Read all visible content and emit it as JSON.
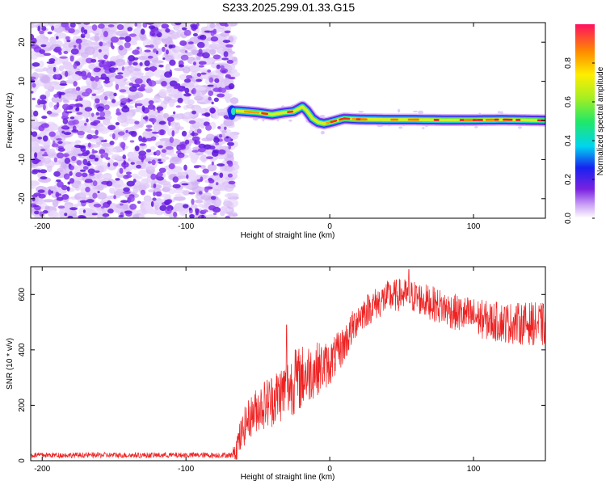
{
  "title": "S233.2025.299.01.33.G15",
  "colors": {
    "snr_line": "#ee2222",
    "axis": "#000000",
    "noise_dark": "#6a1ee0",
    "noise_light": "#d9c2f5"
  },
  "chart_data": [
    {
      "type": "heatmap",
      "name": "spectrogram",
      "title": "S233.2025.299.01.33.G15",
      "xlabel": "Height of straight line (km)",
      "ylabel": "Frequency (Hz)",
      "xlim": [
        -208,
        150
      ],
      "ylim": [
        -25,
        25
      ],
      "xticks": [
        -200,
        -100,
        0,
        100
      ],
      "yticks": [
        -20,
        -10,
        0,
        10,
        20
      ],
      "noise_region_x": [
        -208,
        -68
      ],
      "signal_track": {
        "x": [
          -68,
          -60,
          -50,
          -40,
          -32,
          -25,
          -19,
          -16,
          -12,
          -8,
          -4,
          0,
          10,
          20,
          40,
          60,
          80,
          100,
          120,
          150
        ],
        "freq_hz": [
          2.5,
          2.3,
          2.0,
          1.5,
          2.0,
          2.3,
          3.5,
          2.5,
          0.5,
          -0.5,
          -0.8,
          -0.5,
          0.5,
          0.3,
          0.2,
          0.2,
          0.1,
          0.1,
          0.2,
          0.0
        ]
      },
      "colorbar": {
        "label": "Normalized spectral amplitude",
        "range": [
          0.0,
          1.0
        ],
        "ticks": [
          "0.0",
          "0.2",
          "0.4",
          "0.6",
          "0.8"
        ]
      }
    },
    {
      "type": "line",
      "name": "snr",
      "xlabel": "Height of straight line (km)",
      "ylabel": "SNR (10 * v/v)",
      "xlim": [
        -208,
        150
      ],
      "ylim": [
        0,
        700
      ],
      "xticks": [
        -200,
        -100,
        0,
        100
      ],
      "yticks": [
        0,
        200,
        400,
        600
      ],
      "trend": {
        "x": [
          -208,
          -68,
          -64,
          -58,
          -50,
          -40,
          -30,
          -20,
          -10,
          0,
          10,
          20,
          30,
          40,
          50,
          60,
          70,
          80,
          90,
          100,
          110,
          120,
          130,
          140,
          150
        ],
        "snr": [
          20,
          20,
          60,
          140,
          190,
          220,
          260,
          300,
          330,
          350,
          420,
          520,
          560,
          590,
          600,
          590,
          570,
          550,
          530,
          520,
          505,
          500,
          495,
          495,
          490
        ]
      },
      "spread": {
        "x": [
          -208,
          -68,
          -64,
          -40,
          -20,
          0,
          20,
          60,
          100,
          150
        ],
        "amplitude": [
          10,
          10,
          60,
          100,
          120,
          80,
          60,
          60,
          70,
          80
        ]
      },
      "peaks": [
        {
          "x": -30,
          "snr": 490
        },
        {
          "x": -24,
          "snr": 400
        },
        {
          "x": 55,
          "snr": 690
        }
      ]
    }
  ]
}
